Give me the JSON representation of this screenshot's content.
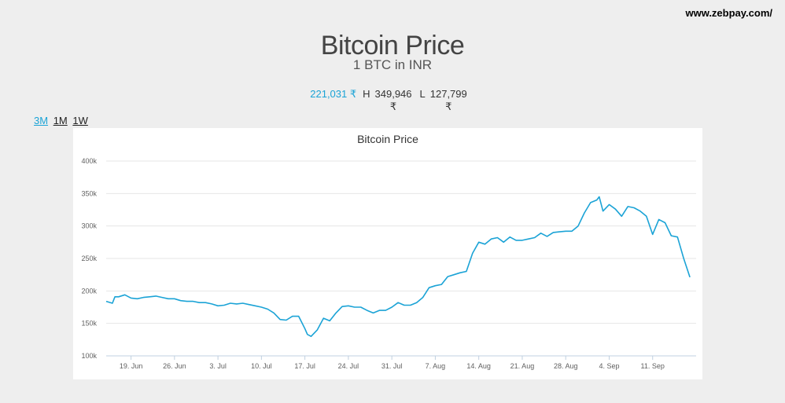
{
  "header": {
    "site_url": "www.zebpay.com/",
    "title": "Bitcoin Price",
    "subtitle": "1 BTC in INR"
  },
  "price": {
    "current": "221,031 ₹",
    "high_label": "H",
    "high_value": "349,946",
    "low_label": "L",
    "low_value": "127,799",
    "currency_symbol": "₹"
  },
  "ranges": [
    {
      "label": "3M",
      "active": true
    },
    {
      "label": "1M",
      "active": false
    },
    {
      "label": "1W",
      "active": false
    }
  ],
  "chart_data": {
    "type": "line",
    "title": "Bitcoin Price",
    "line_color": "#1ba3d6",
    "ylim": [
      100000,
      400000
    ],
    "y_ticks": [
      100000,
      150000,
      200000,
      250000,
      300000,
      350000,
      400000
    ],
    "y_tick_labels": [
      "100k",
      "150k",
      "200k",
      "250k",
      "300k",
      "350k",
      "400k"
    ],
    "x_tick_dates": [
      "2017-06-19",
      "2017-06-26",
      "2017-07-03",
      "2017-07-10",
      "2017-07-17",
      "2017-07-24",
      "2017-07-31",
      "2017-08-07",
      "2017-08-14",
      "2017-08-21",
      "2017-08-28",
      "2017-09-04",
      "2017-09-11"
    ],
    "x_tick_labels": [
      "19. Jun",
      "26. Jun",
      "3. Jul",
      "10. Jul",
      "17. Jul",
      "24. Jul",
      "31. Jul",
      "7. Aug",
      "14. Aug",
      "21. Aug",
      "28. Aug",
      "4. Sep",
      "11. Sep"
    ],
    "xlim": [
      "2017-06-15",
      "2017-09-18"
    ],
    "grid": true,
    "legend": "none",
    "series": [
      {
        "points": [
          [
            "2017-06-15",
            184000
          ],
          [
            "2017-06-16",
            181000
          ],
          [
            "2017-06-16",
            191000
          ],
          [
            "2017-06-17",
            191000
          ],
          [
            "2017-06-18",
            194000
          ],
          [
            "2017-06-19",
            189000
          ],
          [
            "2017-06-20",
            188000
          ],
          [
            "2017-06-21",
            190000
          ],
          [
            "2017-06-22",
            191000
          ],
          [
            "2017-06-23",
            192000
          ],
          [
            "2017-06-24",
            190000
          ],
          [
            "2017-06-25",
            188000
          ],
          [
            "2017-06-26",
            188000
          ],
          [
            "2017-06-27",
            185000
          ],
          [
            "2017-06-28",
            184000
          ],
          [
            "2017-06-29",
            184000
          ],
          [
            "2017-06-30",
            182000
          ],
          [
            "2017-07-01",
            182000
          ],
          [
            "2017-07-02",
            180000
          ],
          [
            "2017-07-03",
            177000
          ],
          [
            "2017-07-04",
            178000
          ],
          [
            "2017-07-05",
            181000
          ],
          [
            "2017-07-06",
            180000
          ],
          [
            "2017-07-07",
            181000
          ],
          [
            "2017-07-08",
            179000
          ],
          [
            "2017-07-09",
            177000
          ],
          [
            "2017-07-10",
            175000
          ],
          [
            "2017-07-11",
            172000
          ],
          [
            "2017-07-12",
            166000
          ],
          [
            "2017-07-13",
            156000
          ],
          [
            "2017-07-14",
            155000
          ],
          [
            "2017-07-15",
            161000
          ],
          [
            "2017-07-16",
            161000
          ],
          [
            "2017-07-17",
            142000
          ],
          [
            "2017-07-17",
            133000
          ],
          [
            "2017-07-18",
            130000
          ],
          [
            "2017-07-19",
            140000
          ],
          [
            "2017-07-20",
            158000
          ],
          [
            "2017-07-21",
            154000
          ],
          [
            "2017-07-22",
            166000
          ],
          [
            "2017-07-23",
            176000
          ],
          [
            "2017-07-24",
            177000
          ],
          [
            "2017-07-25",
            175000
          ],
          [
            "2017-07-26",
            175000
          ],
          [
            "2017-07-27",
            170000
          ],
          [
            "2017-07-28",
            166000
          ],
          [
            "2017-07-29",
            170000
          ],
          [
            "2017-07-30",
            170000
          ],
          [
            "2017-07-31",
            175000
          ],
          [
            "2017-08-01",
            182000
          ],
          [
            "2017-08-02",
            178000
          ],
          [
            "2017-08-03",
            178000
          ],
          [
            "2017-08-04",
            182000
          ],
          [
            "2017-08-05",
            190000
          ],
          [
            "2017-08-06",
            205000
          ],
          [
            "2017-08-07",
            208000
          ],
          [
            "2017-08-08",
            210000
          ],
          [
            "2017-08-09",
            222000
          ],
          [
            "2017-08-10",
            225000
          ],
          [
            "2017-08-11",
            228000
          ],
          [
            "2017-08-12",
            230000
          ],
          [
            "2017-08-13",
            258000
          ],
          [
            "2017-08-14",
            275000
          ],
          [
            "2017-08-15",
            272000
          ],
          [
            "2017-08-16",
            280000
          ],
          [
            "2017-08-17",
            282000
          ],
          [
            "2017-08-18",
            275000
          ],
          [
            "2017-08-19",
            283000
          ],
          [
            "2017-08-20",
            278000
          ],
          [
            "2017-08-21",
            278000
          ],
          [
            "2017-08-22",
            280000
          ],
          [
            "2017-08-23",
            282000
          ],
          [
            "2017-08-24",
            289000
          ],
          [
            "2017-08-25",
            284000
          ],
          [
            "2017-08-26",
            290000
          ],
          [
            "2017-08-27",
            291000
          ],
          [
            "2017-08-28",
            292000
          ],
          [
            "2017-08-29",
            292000
          ],
          [
            "2017-08-30",
            300000
          ],
          [
            "2017-08-31",
            320000
          ],
          [
            "2017-09-01",
            336000
          ],
          [
            "2017-09-02",
            340000
          ],
          [
            "2017-09-02",
            345000
          ],
          [
            "2017-09-03",
            323000
          ],
          [
            "2017-09-04",
            333000
          ],
          [
            "2017-09-05",
            326000
          ],
          [
            "2017-09-06",
            315000
          ],
          [
            "2017-09-07",
            330000
          ],
          [
            "2017-09-08",
            328000
          ],
          [
            "2017-09-09",
            323000
          ],
          [
            "2017-09-10",
            315000
          ],
          [
            "2017-09-11",
            287000
          ],
          [
            "2017-09-12",
            310000
          ],
          [
            "2017-09-13",
            305000
          ],
          [
            "2017-09-14",
            285000
          ],
          [
            "2017-09-15",
            283000
          ],
          [
            "2017-09-16",
            250000
          ],
          [
            "2017-09-17",
            221031
          ]
        ]
      }
    ]
  }
}
